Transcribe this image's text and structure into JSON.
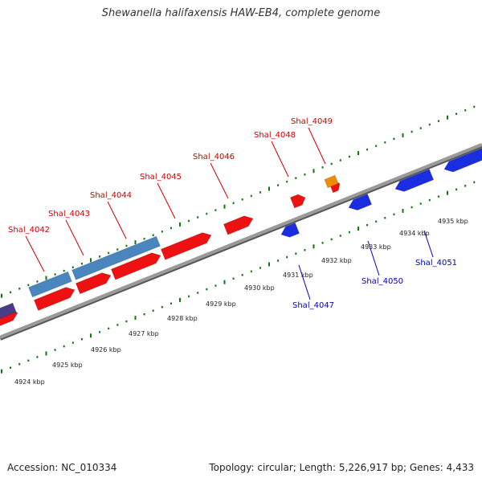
{
  "title": "Shewanella halifaxensis HAW-EB4, complete genome",
  "footer": {
    "accession": "Accession: NC_010334",
    "summary": "Topology: circular; Length: 5,226,917 bp; Genes: 4,433"
  },
  "colors": {
    "forward_cds": "#ee1111",
    "reverse_cds": "#1a2ee0",
    "forward_other": "#4a86be",
    "forward_misc": "#f08c00",
    "reverse_other": "#4a3c8a",
    "backbone": "#9a9a9a",
    "tick": "#117711",
    "label_forward": "#cc0000",
    "label_reverse": "#0000bb"
  },
  "genes_forward": [
    "Shal_4042",
    "Shal_4043",
    "Shal_4044",
    "Shal_4045",
    "Shal_4046",
    "Shal_4048",
    "Shal_4049"
  ],
  "genes_reverse": [
    "Shal_4047",
    "Shal_4050",
    "Shal_4051"
  ],
  "kbp_labels": [
    "4924 kbp",
    "4925 kbp",
    "4926 kbp",
    "4927 kbp",
    "4928 kbp",
    "4929 kbp",
    "4930 kbp",
    "4931 kbp",
    "4932 kbp",
    "4933 kbp",
    "4934 kbp",
    "4935 kbp"
  ]
}
